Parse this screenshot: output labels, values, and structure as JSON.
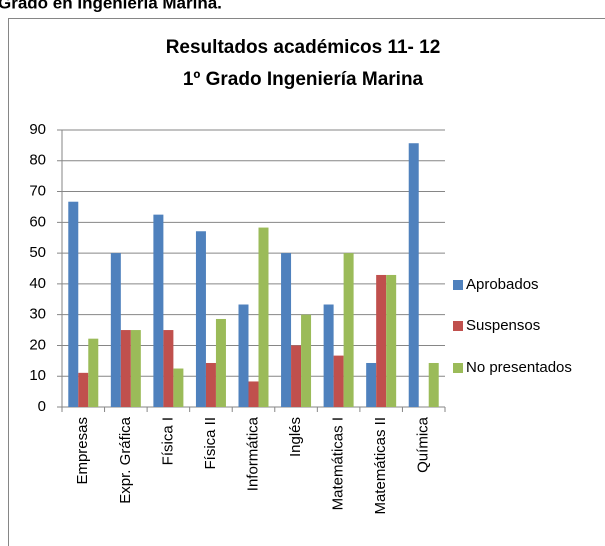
{
  "header": "Grado en Ingeniería Marina.",
  "chart_data": {
    "type": "bar",
    "title": [
      "Resultados académicos 11- 12",
      "1º Grado Ingeniería Marina"
    ],
    "categories": [
      "Empresas",
      "Expr. Gráfica",
      "Física I",
      "Física II",
      "Informática",
      "Inglés",
      "Matemáticas I",
      "Matemáticas II",
      "Química"
    ],
    "series": [
      {
        "name": "Aprobados",
        "color": "#4f81bd",
        "values": [
          66.7,
          50,
          62.5,
          57.1,
          33.3,
          50,
          33.3,
          14.3,
          85.7
        ]
      },
      {
        "name": "Suspensos",
        "color": "#c0504d",
        "values": [
          11.1,
          25,
          25,
          14.3,
          8.3,
          20,
          16.7,
          42.9,
          0
        ]
      },
      {
        "name": "No presentados",
        "color": "#9bbb59",
        "values": [
          22.2,
          25,
          12.5,
          28.6,
          58.3,
          30,
          50,
          42.9,
          14.3
        ]
      }
    ],
    "ylim": [
      0,
      90
    ],
    "yticks": [
      0,
      10,
      20,
      30,
      40,
      50,
      60,
      70,
      80,
      90
    ],
    "grid": true,
    "legend": "right"
  }
}
